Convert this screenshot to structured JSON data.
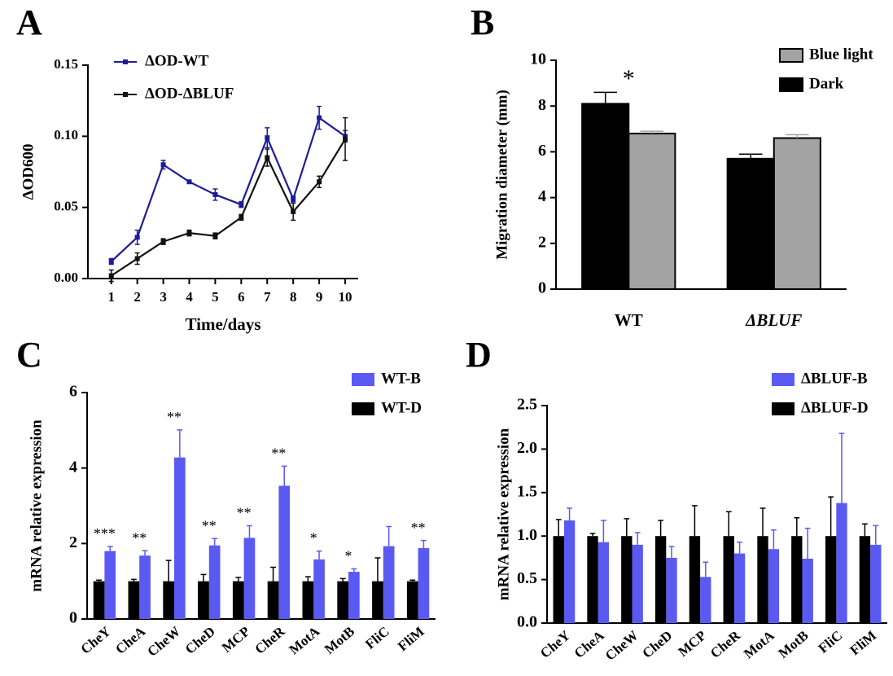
{
  "chart_data": [
    {
      "type": "line",
      "label": "A",
      "xlabel": "Time/days",
      "ylabel": "ΔOD600",
      "x": [
        1,
        2,
        3,
        4,
        5,
        6,
        7,
        8,
        9,
        10
      ],
      "xlim": [
        0.1,
        10.5
      ],
      "xticks": [
        1,
        2,
        3,
        4,
        5,
        6,
        7,
        8,
        9,
        10
      ],
      "ylim": [
        0,
        0.15
      ],
      "yticks": [
        {
          "value": 0,
          "label": "0.00"
        },
        {
          "value": 0.05,
          "label": "0.05"
        },
        {
          "value": 0.1,
          "label": "0.10"
        },
        {
          "value": 0.15,
          "label": "0.15"
        }
      ],
      "series": [
        {
          "name": "ΔOD-WT",
          "color": "#1c1c9a",
          "values": [
            0.012,
            0.029,
            0.08,
            0.068,
            0.059,
            0.052,
            0.099,
            0.056,
            0.113,
            0.1
          ],
          "errors": [
            0.002,
            0.005,
            0.003,
            0.001,
            0.004,
            0.002,
            0.007,
            0.002,
            0.008,
            0.004
          ]
        },
        {
          "name": "ΔOD-ΔBLUF",
          "color": "#111111",
          "values": [
            0.002,
            0.014,
            0.026,
            0.032,
            0.03,
            0.043,
            0.085,
            0.047,
            0.068,
            0.098
          ],
          "errors": [
            0.004,
            0.004,
            0.002,
            0.002,
            0.002,
            0.002,
            0.006,
            0.006,
            0.004,
            0.015
          ]
        }
      ]
    },
    {
      "type": "bar",
      "label": "B",
      "ylabel": "Migration diameter (mm)",
      "categories": [
        "WT",
        "ΔBLUF"
      ],
      "annotations": [
        "*",
        null
      ],
      "ylim": [
        0,
        10
      ],
      "yticks": [
        0,
        2,
        4,
        6,
        8,
        10
      ],
      "series": [
        {
          "name": "Blue light",
          "color": "#a3a3a3",
          "values": [
            6.8,
            6.6
          ],
          "errors": [
            0.1,
            0.15
          ]
        },
        {
          "name": "Dark",
          "color": "#000000",
          "values": [
            8.1,
            5.7
          ],
          "errors": [
            0.5,
            0.2
          ]
        }
      ]
    },
    {
      "type": "bar",
      "label": "C",
      "ylabel": "mRNA relative expression",
      "categories": [
        "CheY",
        "CheA",
        "CheW",
        "CheD",
        "MCP",
        "CheR",
        "MotA",
        "MotB",
        "FliC",
        "FliM"
      ],
      "annotations": [
        "***",
        "**",
        "**",
        "**",
        "**",
        "**",
        "*",
        "*",
        null,
        "**"
      ],
      "ylim": [
        0,
        6
      ],
      "yticks": [
        0,
        2,
        4,
        6
      ],
      "series": [
        {
          "name": "WT-B",
          "color": "#5a5af2",
          "values": [
            1.8,
            1.68,
            4.28,
            1.95,
            2.15,
            3.53,
            1.58,
            1.25,
            1.93,
            1.88
          ],
          "errors": [
            0.12,
            0.13,
            0.73,
            0.18,
            0.32,
            0.52,
            0.22,
            0.08,
            0.52,
            0.2
          ]
        },
        {
          "name": "WT-D",
          "color": "#000000",
          "values": [
            1,
            1,
            1,
            1,
            1,
            1,
            1,
            1,
            1,
            1
          ],
          "errors": [
            0.03,
            0.05,
            0.55,
            0.18,
            0.1,
            0.37,
            0.12,
            0.07,
            0.62,
            0.03
          ]
        }
      ]
    },
    {
      "type": "bar",
      "label": "D",
      "ylabel": "mRNA relative expression",
      "categories": [
        "CheY",
        "CheA",
        "CheW",
        "CheD",
        "MCP",
        "CheR",
        "MotA",
        "MotB",
        "FliC",
        "FliM"
      ],
      "ylim": [
        0,
        2.5
      ],
      "yticks": [
        {
          "value": 0,
          "label": "0.0"
        },
        0.5,
        {
          "value": 1,
          "label": "1.0"
        },
        1.5,
        {
          "value": 2,
          "label": "2.0"
        },
        2.5
      ],
      "series": [
        {
          "name": "ΔBLUF-B",
          "color": "#5a5af2",
          "values": [
            1.18,
            0.93,
            0.9,
            0.75,
            0.53,
            0.8,
            0.85,
            0.74,
            1.38,
            0.9
          ],
          "errors": [
            0.14,
            0.25,
            0.14,
            0.13,
            0.17,
            0.13,
            0.22,
            0.35,
            0.8,
            0.22
          ]
        },
        {
          "name": "ΔBLUF-D",
          "color": "#000000",
          "values": [
            1,
            1,
            1,
            1,
            1,
            1,
            1,
            1,
            1,
            1
          ],
          "errors": [
            0.19,
            0.03,
            0.2,
            0.18,
            0.35,
            0.28,
            0.32,
            0.21,
            0.45,
            0.14
          ]
        }
      ]
    }
  ]
}
